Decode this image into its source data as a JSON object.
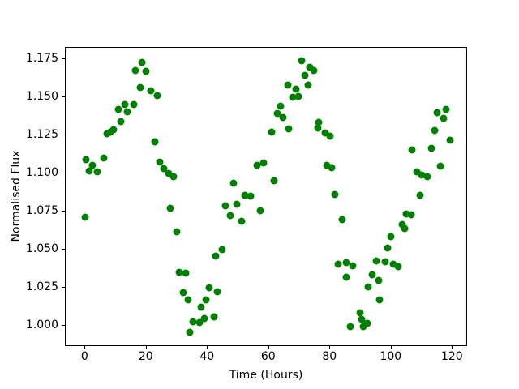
{
  "figure": {
    "background": "#ffffff",
    "x_axis": {
      "label": "Time (Hours)",
      "ticks": [
        0,
        20,
        40,
        60,
        80,
        100,
        120
      ],
      "tick_labels": [
        "0",
        "20",
        "40",
        "60",
        "80",
        "100",
        "120"
      ]
    },
    "y_axis": {
      "label": "Normalised Flux",
      "ticks": [
        1.0,
        1.025,
        1.05,
        1.075,
        1.1,
        1.125,
        1.15,
        1.175
      ],
      "tick_labels": [
        "1.000",
        "1.025",
        "1.050",
        "1.075",
        "1.100",
        "1.125",
        "1.150",
        "1.175"
      ]
    }
  },
  "chart_data": {
    "type": "scatter",
    "title": "",
    "xlabel": "Time (Hours)",
    "ylabel": "Normalised Flux",
    "legend": null,
    "grid": false,
    "marker_color": "#008000",
    "marker_size_px": 9,
    "xlim": [
      -6.44,
      124.95
    ],
    "ylim": [
      0.9864,
      1.1827
    ],
    "x": [
      0.0,
      0.2,
      1.3,
      2.4,
      4.0,
      5.9,
      7.0,
      8.1,
      9.2,
      10.9,
      11.7,
      12.9,
      13.7,
      15.8,
      16.3,
      17.9,
      18.5,
      19.9,
      21.4,
      22.8,
      23.4,
      24.3,
      25.7,
      27.3,
      27.7,
      28.9,
      29.8,
      30.6,
      31.9,
      32.8,
      33.6,
      34.2,
      35.2,
      37.2,
      37.7,
      38.9,
      39.5,
      40.4,
      42.1,
      42.6,
      43.2,
      44.8,
      45.7,
      47.3,
      48.5,
      49.5,
      51.0,
      52.1,
      54.0,
      56.1,
      57.1,
      58.3,
      60.8,
      61.7,
      62.8,
      63.7,
      64.6,
      66.1,
      66.5,
      67.8,
      68.8,
      69.6,
      70.7,
      71.6,
      72.7,
      73.4,
      74.7,
      75.9,
      76.2,
      78.3,
      78.8,
      80.0,
      80.5,
      81.5,
      82.6,
      84.0,
      85.1,
      85.3,
      86.6,
      87.3,
      89.7,
      90.3,
      90.9,
      92.0,
      92.4,
      93.8,
      94.9,
      95.8,
      96.1,
      97.9,
      98.7,
      99.9,
      100.6,
      102.1,
      103.5,
      104.4,
      104.8,
      106.4,
      106.7,
      108.3,
      109.3,
      109.9,
      111.7,
      113.0,
      114.0,
      114.9,
      115.9,
      117.1,
      117.7,
      119.0
    ],
    "y": [
      1.0716,
      1.1091,
      1.1017,
      1.1057,
      1.1013,
      1.1105,
      1.1261,
      1.1275,
      1.1288,
      1.1422,
      1.1343,
      1.1455,
      1.1405,
      1.1455,
      1.1679,
      1.1567,
      1.1731,
      1.1674,
      1.1546,
      1.1211,
      1.1511,
      1.1077,
      1.1033,
      1.1001,
      1.0774,
      1.0983,
      1.0618,
      1.0356,
      1.022,
      1.0349,
      1.0172,
      0.996,
      1.003,
      1.0023,
      1.0126,
      1.0052,
      1.017,
      1.025,
      1.0061,
      1.0461,
      1.0225,
      1.0505,
      1.0787,
      1.0728,
      1.0937,
      1.0798,
      1.0689,
      1.0859,
      1.0855,
      1.1057,
      1.0756,
      1.1072,
      1.1274,
      1.0955,
      1.1397,
      1.1445,
      1.1368,
      1.1583,
      1.1297,
      1.1504,
      1.1557,
      1.1509,
      1.174,
      1.1646,
      1.158,
      1.1699,
      1.1676,
      1.13,
      1.1339,
      1.1268,
      1.1058,
      1.1247,
      1.104,
      1.0866,
      1.0409,
      1.0698,
      1.0323,
      1.0418,
      0.9995,
      1.0397,
      1.009,
      1.0044,
      0.9995,
      1.0017,
      1.0259,
      1.0338,
      1.0427,
      1.03,
      1.0174,
      1.0423,
      1.0512,
      1.0587,
      1.0408,
      1.039,
      1.0665,
      1.0639,
      1.0739,
      1.0729,
      1.1158,
      1.1012,
      1.086,
      1.099,
      1.0979,
      1.1167,
      1.1283,
      1.1401,
      1.1052,
      1.1362,
      1.1421,
      1.122
    ]
  }
}
